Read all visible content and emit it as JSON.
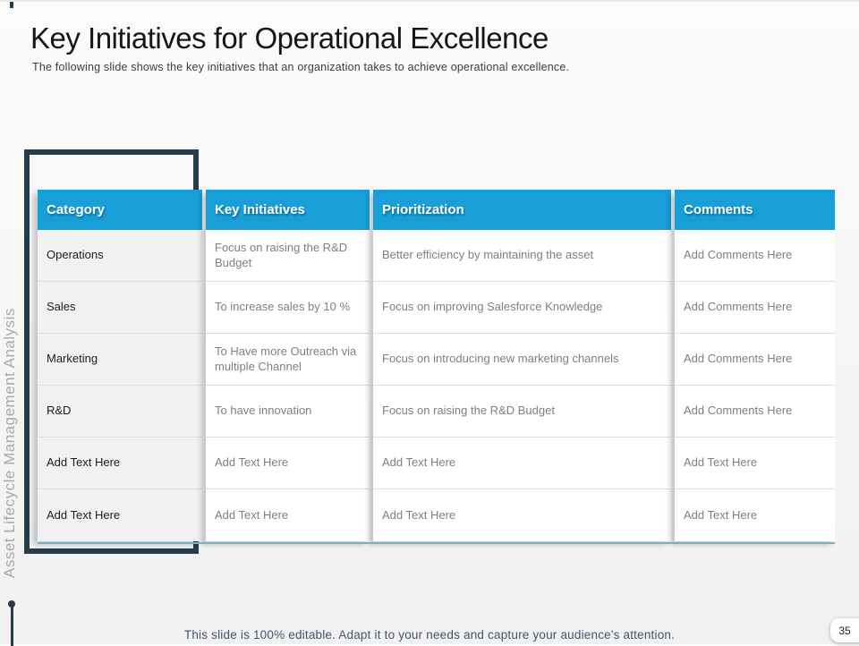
{
  "slide": {
    "title": "Key Initiatives for Operational Excellence",
    "subtitle": "The following slide shows the key initiatives that an organization takes to achieve operational excellence.",
    "side_label": "Asset Lifecycle Management Analysis",
    "footer_note": "This slide is 100% editable. Adapt it to your needs and capture your audience's attention.",
    "page_number": "35"
  },
  "table": {
    "columns": [
      "Category",
      "Key Initiatives",
      "Prioritization",
      "Comments"
    ],
    "rows": [
      [
        "Operations",
        "Focus on raising the R&D Budget",
        "Better efficiency by maintaining the asset",
        "Add Comments Here"
      ],
      [
        "Sales",
        "To increase sales by  10 %",
        "Focus on improving Salesforce Knowledge",
        "Add Comments Here"
      ],
      [
        "Marketing",
        "To Have  more Outreach via multiple Channel",
        "Focus on introducing new marketing  channels",
        "Add Comments Here"
      ],
      [
        "R&D",
        "To  have  innovation",
        "Focus on raising the R&D Budget",
        "Add Comments Here"
      ],
      [
        "Add Text Here",
        "Add Text Here",
        "Add Text Here",
        "Add Text Here"
      ],
      [
        "Add Text Here",
        "Add Text Here",
        "Add Text Here",
        "Add Text Here"
      ]
    ]
  },
  "colors": {
    "header_bg": "#189fd8",
    "accent_dark": "#253c4b",
    "category_cell_bg": "#f1f1f1",
    "table_bottom_line": "#7fafbc"
  }
}
